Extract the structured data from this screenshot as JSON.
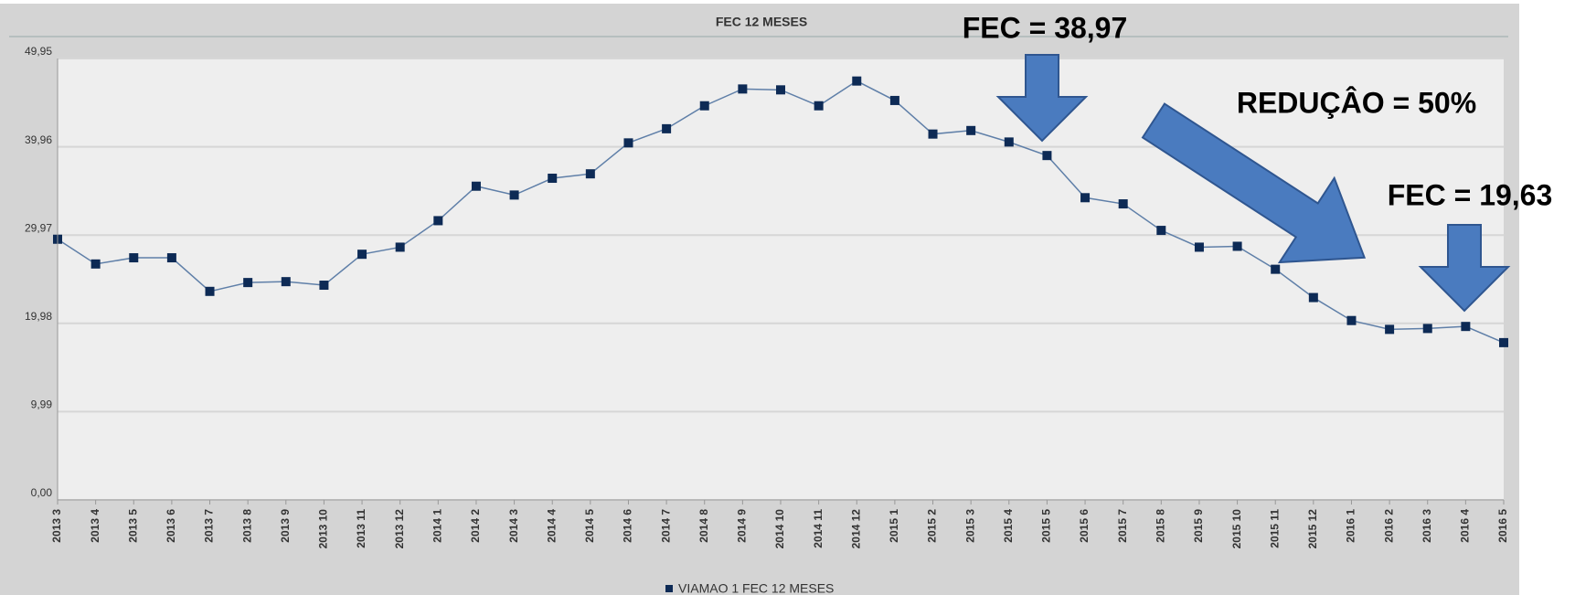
{
  "chart_data": {
    "type": "line",
    "title": "FEC 12 MESES",
    "categories": [
      "2013 3",
      "2013 4",
      "2013 5",
      "2013 6",
      "2013 7",
      "2013 8",
      "2013 9",
      "2013 10",
      "2013 11",
      "2013 12",
      "2014 1",
      "2014 2",
      "2014 3",
      "2014 4",
      "2014 5",
      "2014 6",
      "2014 7",
      "2014 8",
      "2014 9",
      "2014 10",
      "2014 11",
      "2014 12",
      "2015 1",
      "2015 2",
      "2015 3",
      "2015 4",
      "2015 5",
      "2015 6",
      "2015 7",
      "2015 8",
      "2015 9",
      "2015 10",
      "2015 11",
      "2015 12",
      "2016 1",
      "2016 2",
      "2016 3",
      "2016 4",
      "2016 5"
    ],
    "series": [
      {
        "name": "VIAMAO 1 FEC 12 MESES",
        "color": "#0d2a55",
        "values": [
          29.5,
          26.7,
          27.4,
          27.4,
          23.6,
          24.6,
          24.7,
          24.3,
          27.8,
          28.6,
          31.6,
          35.5,
          34.5,
          36.4,
          36.9,
          40.4,
          42.0,
          44.6,
          46.5,
          46.4,
          44.6,
          47.4,
          45.2,
          41.4,
          41.8,
          40.5,
          38.97,
          34.2,
          33.5,
          30.5,
          28.6,
          28.7,
          26.1,
          22.9,
          20.3,
          19.3,
          19.4,
          19.63,
          17.8
        ]
      }
    ],
    "ylim": [
      0,
      49.95
    ],
    "yticks": [
      {
        "value": 0,
        "label": "0,00"
      },
      {
        "value": 9.99,
        "label": "9,99"
      },
      {
        "value": 19.98,
        "label": "19,98"
      },
      {
        "value": 29.97,
        "label": "29,97"
      },
      {
        "value": 39.96,
        "label": "39,96"
      },
      {
        "value": 49.95,
        "label": "49,95"
      }
    ],
    "grid": true,
    "annotations": [
      "FEC = 38,97",
      "REDUÇÂO = 50%",
      "FEC = 19,63"
    ]
  }
}
